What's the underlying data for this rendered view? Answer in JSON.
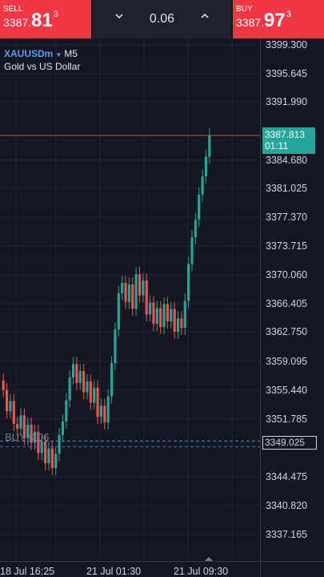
{
  "trade_bar": {
    "sell": {
      "label": "SELL",
      "price_prefix": "3387.",
      "price_big": "81",
      "price_sup": "3"
    },
    "buy": {
      "label": "BUY",
      "price_prefix": "3387.",
      "price_big": "97",
      "price_sup": "3"
    },
    "lot_size": "0.06",
    "decrease_icon": "chevron-down-icon",
    "increase_icon": "chevron-up-icon"
  },
  "symbol": {
    "ticker": "XAUUSDm",
    "timeframe": "M5",
    "description": "Gold vs US Dollar"
  },
  "price_axis": [
    "3399.300",
    "3395.645",
    "3391.990",
    "3384.680",
    "3381.025",
    "3377.370",
    "3373.715",
    "3370.060",
    "3366.405",
    "3362.750",
    "3359.095",
    "3355.440",
    "3351.785",
    "3344.475",
    "3340.820",
    "3337.165"
  ],
  "time_axis": [
    "18 Jul 16:25",
    "21 Jul 01:30",
    "21 Jul 09:30"
  ],
  "current_price": {
    "price": "3387.813",
    "countdown": "01:11"
  },
  "position_line": {
    "label": "BUY 0.06",
    "price": "3349.025"
  },
  "colors": {
    "sell": "#f23645",
    "buy": "#f23645",
    "up_candle": "#26a69a",
    "down_candle": "#ef5350",
    "background": "#131722",
    "grid": "#2a2e39"
  },
  "chart_data": {
    "type": "candlestick",
    "series": [
      {
        "name": "XAUUSDm",
        "close": [
          3355.5,
          3352.8,
          3354.1,
          3351.2,
          3350.6,
          3352.3,
          3349.4,
          3351.1,
          3348.8,
          3350.2,
          3347.5,
          3349.0,
          3346.2,
          3348.1,
          3345.6,
          3347.4,
          3349.8,
          3351.5,
          3354.2,
          3357.1,
          3358.8,
          3356.4,
          3357.9,
          3355.2,
          3356.6,
          3353.9,
          3355.8,
          3352.1,
          3353.5,
          3351.4,
          3354.7,
          3358.9,
          3363.2,
          3367.8,
          3369.1,
          3366.7,
          3368.9,
          3365.8,
          3370.2,
          3367.5,
          3369.4,
          3365.1,
          3366.6,
          3363.9,
          3365.9,
          3363.5,
          3366.4,
          3364.2,
          3365.8,
          3362.9,
          3364.6,
          3363.4,
          3366.8,
          3371.5,
          3374.9,
          3377.1,
          3380.3,
          3382.6,
          3385.1,
          3387.8
        ]
      }
    ],
    "ylim": [
      3333.51,
      3402.955
    ]
  }
}
